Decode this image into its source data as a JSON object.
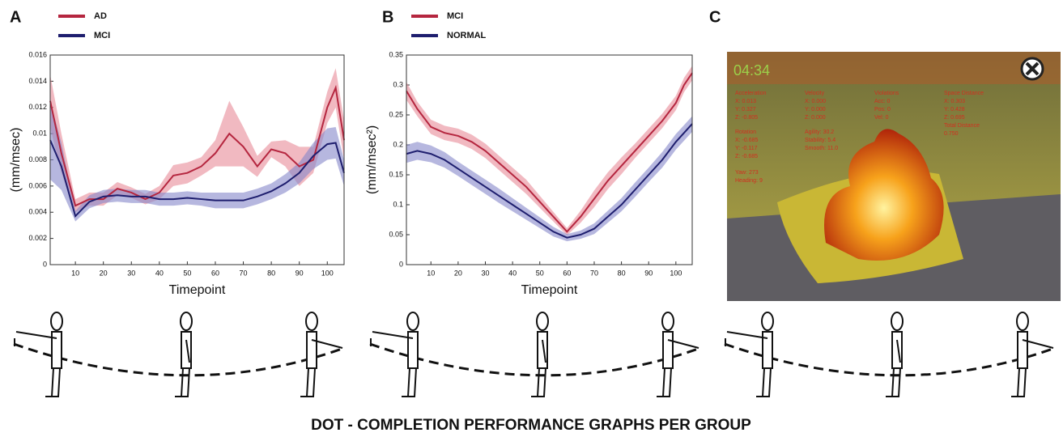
{
  "panels": [
    "A",
    "B",
    "C"
  ],
  "chart_data": [
    {
      "type": "line",
      "xlabel": "Timepoint",
      "ylabel": "(mm/msec)",
      "x": [
        1,
        5,
        10,
        15,
        20,
        25,
        30,
        35,
        40,
        45,
        50,
        55,
        60,
        65,
        70,
        75,
        80,
        85,
        90,
        95,
        100,
        103,
        106
      ],
      "xlim": [
        1,
        106
      ],
      "xticks": [
        10,
        20,
        30,
        40,
        50,
        60,
        70,
        80,
        90,
        100
      ],
      "ylim": [
        0,
        0.016
      ],
      "yticks": [
        0,
        0.002,
        0.004,
        0.006,
        0.008,
        0.01,
        0.012,
        0.014,
        0.016
      ],
      "series": [
        {
          "name": "AD",
          "color": "#b5263f",
          "band_color": "#e88a98",
          "values": [
            0.0125,
            0.0085,
            0.0045,
            0.005,
            0.005,
            0.0058,
            0.0055,
            0.005,
            0.0055,
            0.0068,
            0.007,
            0.0075,
            0.0085,
            0.01,
            0.009,
            0.0075,
            0.0088,
            0.0085,
            0.0075,
            0.008,
            0.012,
            0.0135,
            0.0095
          ],
          "errors": [
            0.002,
            0.0015,
            0.0005,
            0.0005,
            0.0005,
            0.0005,
            0.0004,
            0.0004,
            0.0005,
            0.0008,
            0.0008,
            0.0007,
            0.001,
            0.0025,
            0.0015,
            0.0008,
            0.0006,
            0.001,
            0.0015,
            0.001,
            0.0012,
            0.0015,
            0.0015
          ]
        },
        {
          "name": "MCI",
          "color": "#1e1e6e",
          "band_color": "#8587c9",
          "values": [
            0.0095,
            0.0075,
            0.0037,
            0.0048,
            0.0052,
            0.0053,
            0.0052,
            0.0052,
            0.005,
            0.005,
            0.0051,
            0.005,
            0.0049,
            0.0049,
            0.0049,
            0.0052,
            0.0056,
            0.0062,
            0.007,
            0.0083,
            0.0092,
            0.0093,
            0.007
          ],
          "errors": [
            0.003,
            0.0018,
            0.0004,
            0.0005,
            0.0005,
            0.0005,
            0.0005,
            0.0005,
            0.0005,
            0.0005,
            0.0005,
            0.0005,
            0.0006,
            0.0006,
            0.0006,
            0.0006,
            0.0006,
            0.0007,
            0.0008,
            0.001,
            0.0012,
            0.0012,
            0.001
          ]
        }
      ]
    },
    {
      "type": "line",
      "xlabel": "Timepoint",
      "ylabel": "(mm/msec²)",
      "x": [
        1,
        5,
        10,
        15,
        20,
        25,
        30,
        35,
        40,
        45,
        50,
        55,
        60,
        65,
        70,
        75,
        80,
        85,
        90,
        95,
        100,
        103,
        106
      ],
      "xlim": [
        1,
        106
      ],
      "xticks": [
        10,
        20,
        30,
        40,
        50,
        60,
        70,
        80,
        90,
        100
      ],
      "ylim": [
        0,
        0.35
      ],
      "yticks": [
        0,
        0.05,
        0.1,
        0.15,
        0.2,
        0.25,
        0.3,
        0.35
      ],
      "series": [
        {
          "name": "MCI",
          "color": "#b5263f",
          "band_color": "#e88a98",
          "values": [
            0.29,
            0.26,
            0.23,
            0.22,
            0.215,
            0.205,
            0.19,
            0.17,
            0.15,
            0.13,
            0.105,
            0.08,
            0.055,
            0.08,
            0.11,
            0.14,
            0.165,
            0.19,
            0.215,
            0.24,
            0.27,
            0.3,
            0.32
          ],
          "errors": [
            0.015,
            0.012,
            0.012,
            0.012,
            0.012,
            0.012,
            0.012,
            0.012,
            0.012,
            0.012,
            0.01,
            0.008,
            0.006,
            0.01,
            0.014,
            0.014,
            0.014,
            0.012,
            0.012,
            0.012,
            0.012,
            0.012,
            0.012
          ]
        },
        {
          "name": "NORMAL",
          "color": "#1e1e6e",
          "band_color": "#8587c9",
          "values": [
            0.185,
            0.19,
            0.185,
            0.175,
            0.16,
            0.145,
            0.13,
            0.115,
            0.1,
            0.085,
            0.07,
            0.055,
            0.045,
            0.05,
            0.06,
            0.08,
            0.1,
            0.125,
            0.15,
            0.175,
            0.205,
            0.22,
            0.235
          ],
          "errors": [
            0.015,
            0.015,
            0.014,
            0.013,
            0.012,
            0.012,
            0.012,
            0.012,
            0.011,
            0.01,
            0.009,
            0.008,
            0.006,
            0.007,
            0.009,
            0.01,
            0.011,
            0.012,
            0.012,
            0.013,
            0.013,
            0.013,
            0.013
          ]
        }
      ]
    }
  ],
  "screen": {
    "timer": "04:34",
    "hud_top": [
      [
        "Acceleration",
        "X:  0.013",
        "Y:  0.327",
        "Z:  -0.805"
      ],
      [
        "Velocity",
        "X:  0.000",
        "Y:  0.000",
        "Z:  0.000"
      ],
      [
        "Violations",
        "Acc:  0",
        "Pos:  0",
        "Vel:  0"
      ],
      [
        "Space Distance",
        "X:  0.303",
        "Y:  0.428",
        "Z:  0.695",
        "Total Distance",
        "0.750"
      ]
    ],
    "hud_bottom": [
      [
        "Rotation",
        "X:  -0.685",
        "Y:  -0.117",
        "Z:  -0.685",
        "",
        "Yaw:  273",
        "Heading:  9"
      ],
      [
        "Agility:  30.2",
        "Stability:  5.4",
        "Smooth:  11.0"
      ]
    ]
  },
  "caption": "DOT -   COMPLETION  PERFORMANCE GRAPHS PER GROUP"
}
